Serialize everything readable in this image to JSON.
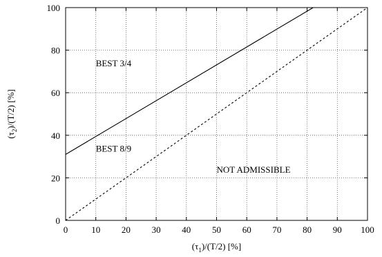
{
  "chart_data": {
    "type": "line",
    "title": "",
    "xlabel": {
      "base": "(τ",
      "sub": "1",
      "rest": ")/(T/2) [%]"
    },
    "ylabel": {
      "base": "(τ",
      "sub": "2",
      "rest": ")/(T/2) [%]"
    },
    "xlim": [
      0,
      100
    ],
    "ylim": [
      0,
      100
    ],
    "xticks": [
      0,
      10,
      20,
      30,
      40,
      50,
      60,
      70,
      80,
      90,
      100
    ],
    "yticks": [
      0,
      20,
      40,
      60,
      80,
      100
    ],
    "xtick_labels": [
      "0",
      "10",
      "20",
      "30",
      "40",
      "50",
      "60",
      "70",
      "80",
      "90",
      "100"
    ],
    "ytick_labels": [
      "0",
      "20",
      "40",
      "60",
      "80",
      "100"
    ],
    "grid": true,
    "grid_style": "dotted",
    "legend": "none",
    "series": [
      {
        "style": "solid",
        "color": "#000000",
        "x": [
          0,
          82
        ],
        "y": [
          31,
          100
        ]
      },
      {
        "style": "dashed",
        "color": "#000000",
        "x": [
          0,
          100
        ],
        "y": [
          0,
          100
        ]
      }
    ],
    "annotations": [
      {
        "text": "BEST 3/4",
        "x": 10,
        "y": 74
      },
      {
        "text": "BEST 8/9",
        "x": 10,
        "y": 34
      },
      {
        "text": "NOT ADMISSIBLE",
        "x": 50,
        "y": 24
      }
    ]
  }
}
